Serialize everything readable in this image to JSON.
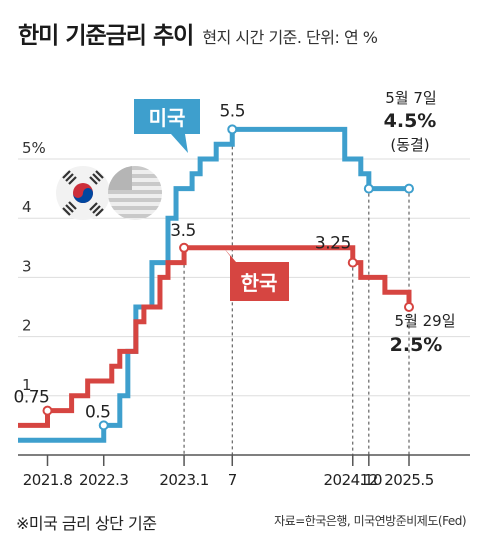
{
  "header": {
    "title": "한미 기준금리 추이",
    "subtitle": "현지 시간 기준. 단위: 연 %"
  },
  "footer": {
    "note": "※미국 금리 상단 기준",
    "source": "자료=한국은행, 미국연방준비제도(Fed)"
  },
  "colors": {
    "us": "#3e9fcd",
    "kr": "#d64541",
    "grid": "#dddddd",
    "axis": "#333333"
  },
  "flags": [
    "korea-flag-icon",
    "usa-flag-icon"
  ],
  "chart_data": {
    "type": "line",
    "y_tick_labels": [
      "1",
      "2",
      "3",
      "4",
      "5%"
    ],
    "y_ticks": [
      1,
      2,
      3,
      4,
      5
    ],
    "ylim": [
      0,
      6
    ],
    "x_tick_labels": [
      "2021.8",
      "2022.3",
      "2023.1",
      "7",
      "2024.10",
      "12",
      "2025.5"
    ],
    "x_ticks": [
      "2021-08",
      "2022-03",
      "2023-01",
      "2023-07",
      "2024-10",
      "2024-12",
      "2025-05"
    ],
    "series": [
      {
        "name": "미국",
        "key": "us",
        "points": [
          [
            "2021-01",
            0.25
          ],
          [
            "2022-03",
            0.5
          ],
          [
            "2022-05",
            1.0
          ],
          [
            "2022-06",
            1.75
          ],
          [
            "2022-07",
            2.5
          ],
          [
            "2022-09",
            3.25
          ],
          [
            "2022-11",
            4.0
          ],
          [
            "2022-12",
            4.5
          ],
          [
            "2023-02",
            4.75
          ],
          [
            "2023-03",
            5.0
          ],
          [
            "2023-05",
            5.25
          ],
          [
            "2023-07",
            5.5
          ],
          [
            "2024-09",
            5.0
          ],
          [
            "2024-11",
            4.75
          ],
          [
            "2024-12",
            4.5
          ],
          [
            "2025-05",
            4.5
          ]
        ]
      },
      {
        "name": "한국",
        "key": "kr",
        "points": [
          [
            "2021-01",
            0.5
          ],
          [
            "2021-08",
            0.75
          ],
          [
            "2021-11",
            1.0
          ],
          [
            "2022-01",
            1.25
          ],
          [
            "2022-04",
            1.5
          ],
          [
            "2022-05",
            1.75
          ],
          [
            "2022-07",
            2.25
          ],
          [
            "2022-08",
            2.5
          ],
          [
            "2022-10",
            3.0
          ],
          [
            "2022-11",
            3.25
          ],
          [
            "2023-01",
            3.5
          ],
          [
            "2024-10",
            3.25
          ],
          [
            "2024-11",
            3.0
          ],
          [
            "2025-02",
            2.75
          ],
          [
            "2025-05",
            2.5
          ]
        ]
      }
    ],
    "markers": {
      "us": [
        [
          "2022-03",
          0.5
        ],
        [
          "2023-07",
          5.5
        ],
        [
          "2024-12",
          4.5
        ],
        [
          "2025-05",
          4.5
        ]
      ],
      "kr": [
        [
          "2021-08",
          0.75
        ],
        [
          "2023-01",
          3.5
        ],
        [
          "2024-10",
          3.25
        ],
        [
          "2025-05",
          2.5
        ]
      ]
    },
    "value_labels": [
      {
        "text": "0.75",
        "series": "kr",
        "at": [
          "2021-08",
          0.75
        ]
      },
      {
        "text": "0.5",
        "series": "us",
        "at": [
          "2022-03",
          0.5
        ]
      },
      {
        "text": "3.5",
        "series": "kr",
        "at": [
          "2023-01",
          3.5
        ]
      },
      {
        "text": "5.5",
        "series": "us",
        "at": [
          "2023-07",
          5.5
        ]
      },
      {
        "text": "3.25",
        "series": "kr",
        "at": [
          "2024-10",
          3.25
        ]
      }
    ],
    "annotations": {
      "us": {
        "date": "5월 7일",
        "value": "4.5%",
        "note": "(동결)"
      },
      "kr": {
        "date": "5월 29일",
        "value": "2.5%"
      }
    }
  }
}
